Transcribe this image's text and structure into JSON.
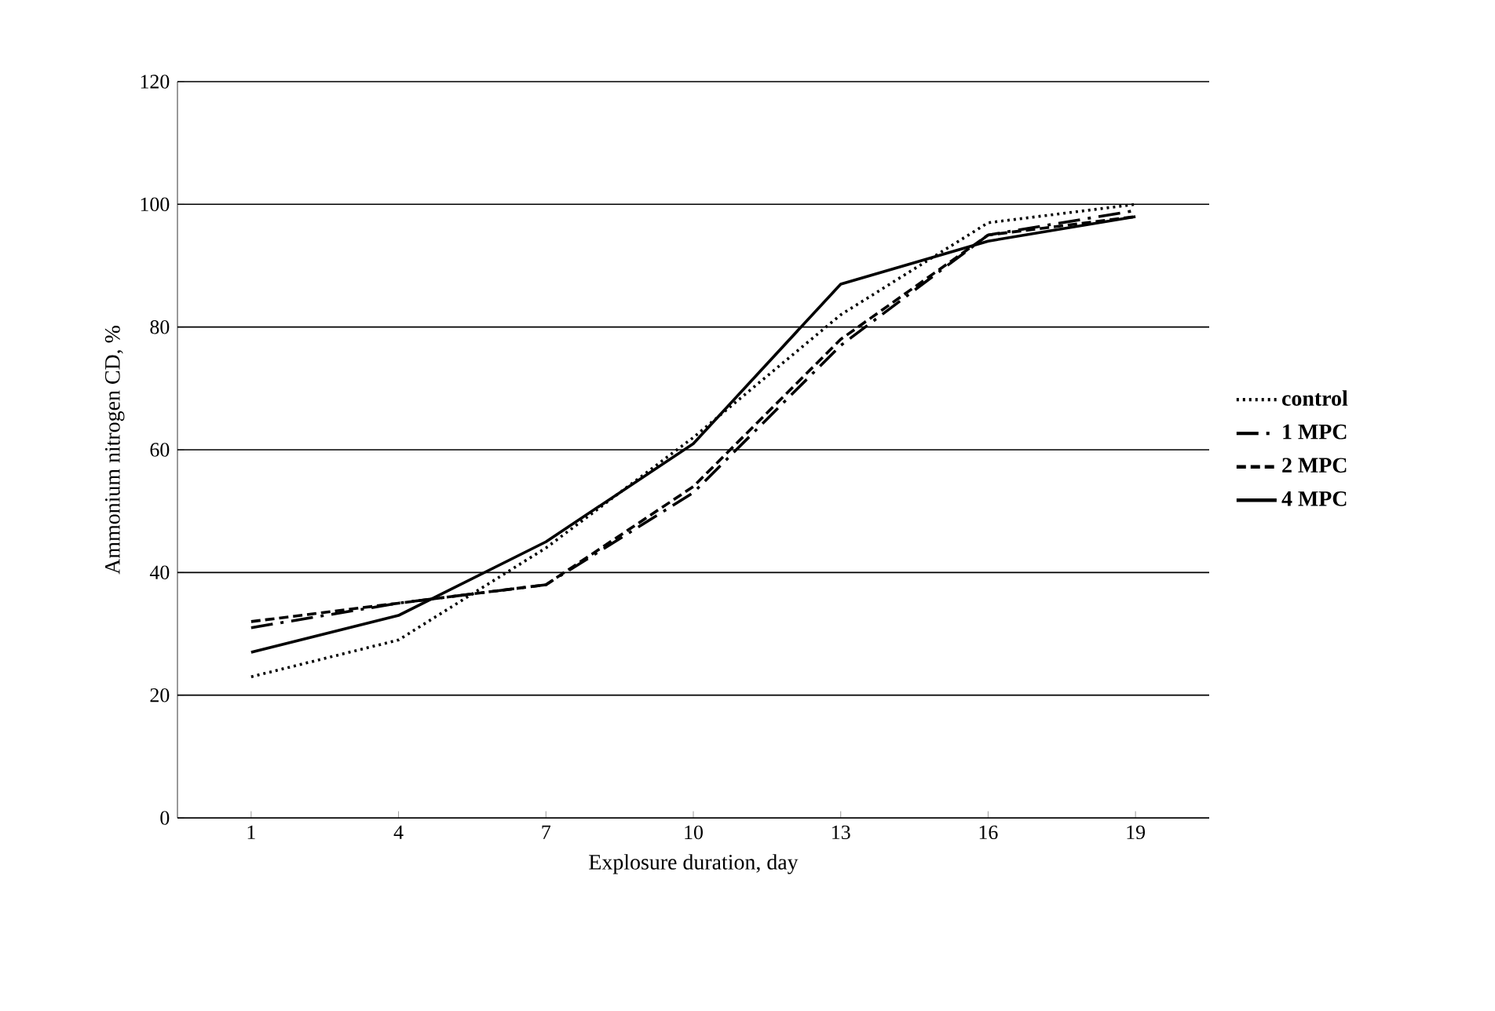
{
  "chart_data": {
    "type": "line",
    "xlabel": "Explosure duration, day",
    "ylabel": "Ammonium nitrogen CD, %",
    "categories": [
      "1",
      "4",
      "7",
      "10",
      "13",
      "16",
      "19"
    ],
    "series": [
      {
        "name": "control",
        "color": "#000000",
        "line_style": "dotted",
        "values": [
          23,
          29,
          44,
          62,
          82,
          97,
          100
        ]
      },
      {
        "name": "1 MPC",
        "color": "#000000",
        "line_style": "dashdot",
        "values": [
          31,
          35,
          38,
          53,
          77,
          95,
          99
        ]
      },
      {
        "name": "2 MPC",
        "color": "#000000",
        "line_style": "dashed",
        "values": [
          32,
          35,
          38,
          54,
          78,
          95,
          98
        ]
      },
      {
        "name": "4 MPC",
        "color": "#000000",
        "line_style": "solid",
        "values": [
          27,
          33,
          45,
          61,
          87,
          94,
          98
        ]
      }
    ],
    "ylim": [
      0,
      120
    ],
    "yticks": [
      0,
      20,
      40,
      60,
      80,
      100,
      120
    ],
    "grid": "y",
    "legend": "right",
    "marker": "none"
  }
}
